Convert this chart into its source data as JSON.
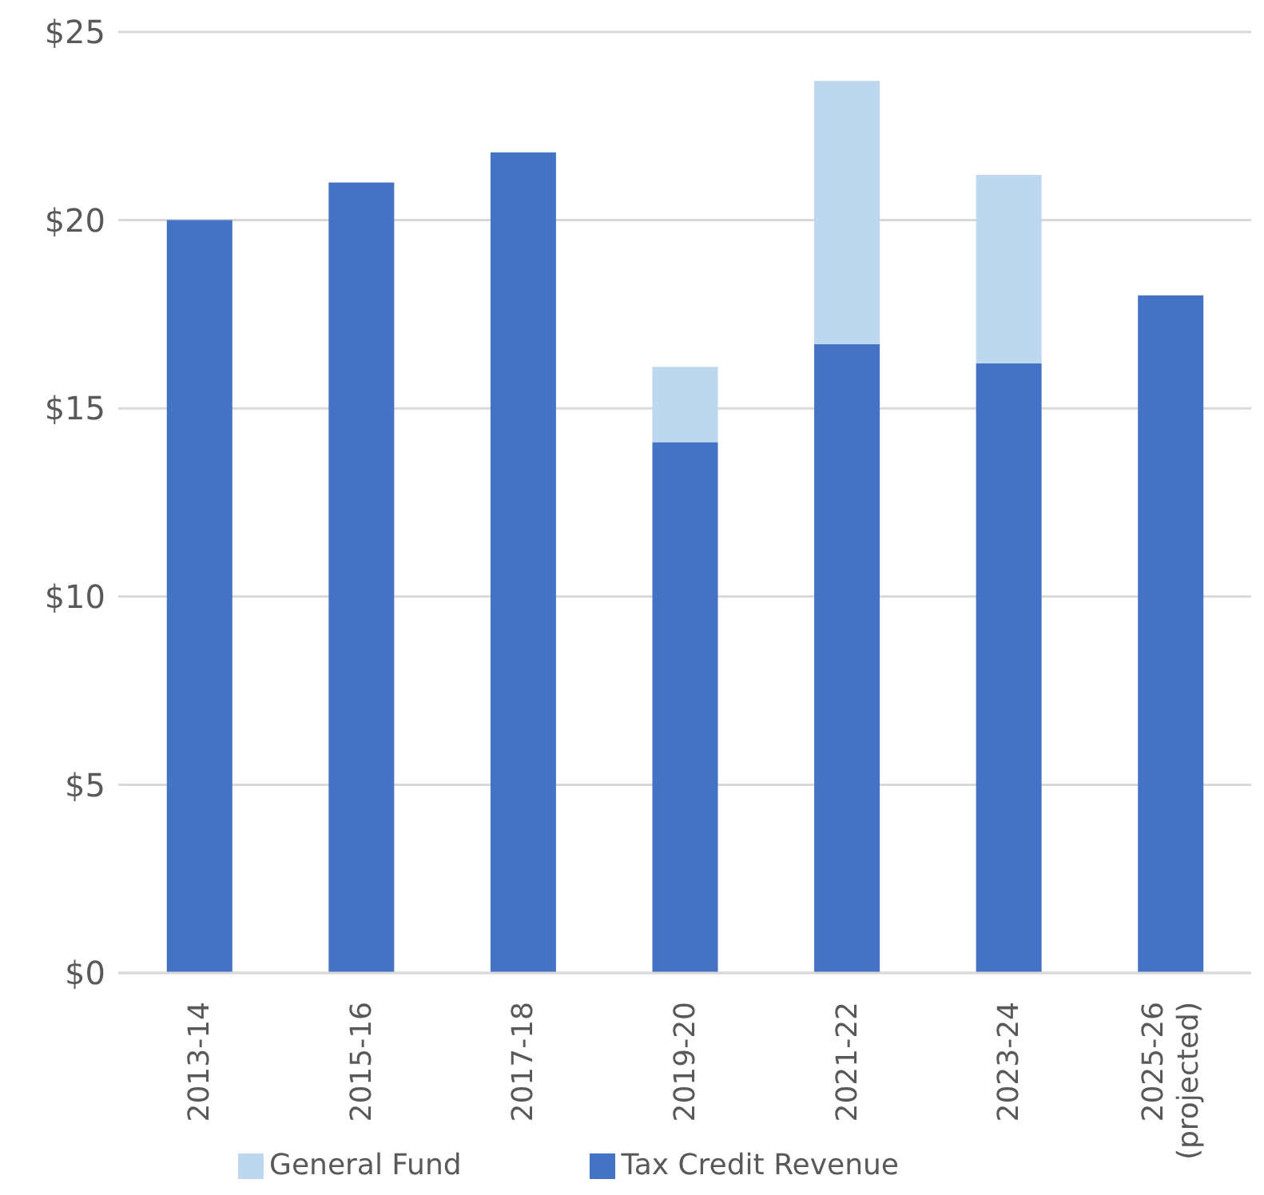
{
  "chart_data": {
    "type": "bar",
    "stacked": true,
    "categories": [
      "2013-14",
      "2015-16",
      "2017-18",
      "2019-20",
      "2021-22",
      "2023-24",
      "2025-26 (projected)"
    ],
    "series": [
      {
        "name": "Tax Credit Revenue",
        "color": "#4472c4",
        "values": [
          20.0,
          21.0,
          21.8,
          14.1,
          16.7,
          16.2,
          18.0
        ]
      },
      {
        "name": "General Fund",
        "color": "#bdd7ee",
        "values": [
          null,
          null,
          null,
          2.0,
          7.0,
          5.0,
          null
        ]
      }
    ],
    "ylim": [
      0,
      25
    ],
    "yticks": [
      {
        "value": 0,
        "label": "$0"
      },
      {
        "value": 5,
        "label": "$5"
      },
      {
        "value": 10,
        "label": "$10"
      },
      {
        "value": 15,
        "label": "$15"
      },
      {
        "value": 20,
        "label": "$20"
      },
      {
        "value": 25,
        "label": "$25"
      }
    ],
    "grid": "y",
    "legend": "bottom"
  }
}
